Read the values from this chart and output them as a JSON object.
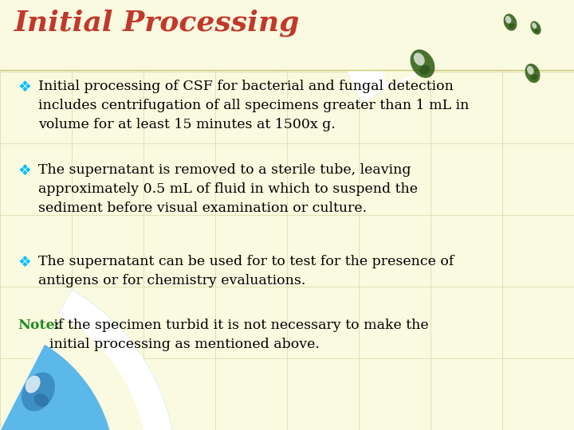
{
  "title": "Initial Processing",
  "title_color": "#C0392B",
  "title_fontsize": 26,
  "bg_color": "#FAFAE0",
  "grid_color": "#E0E0B8",
  "bullet_color": "#00BFFF",
  "bullet_char": "❖",
  "body_color": "#000000",
  "note_label_color": "#228B22",
  "note_label": "Note:",
  "note_body": " if the specimen turbid it is not necessary to make the\ninitial processing as mentioned above.",
  "note_fontsize": 12.5,
  "body_fontsize": 12.5,
  "bullets": [
    "Initial processing of CSF for bacterial and fungal detection\nincludes centrifugation of all specimens greater than 1 mL in\nvolume for at least 15 minutes at 1500x g.",
    "The supernatant is removed to a sterile tube, leaving\napproximately 0.5 mL of fluid in which to suspend the\nsediment before visual examination or culture.",
    "The supernatant can be used for to test for the presence of\nantigens or for chemistry evaluations."
  ],
  "green_decor_color": "#8DC63F",
  "green_dark_color": "#5A8A00",
  "white_color": "#FFFFFF",
  "blue_decor_color": "#5BB8E8",
  "blue_dark_color": "#3A7FB0"
}
